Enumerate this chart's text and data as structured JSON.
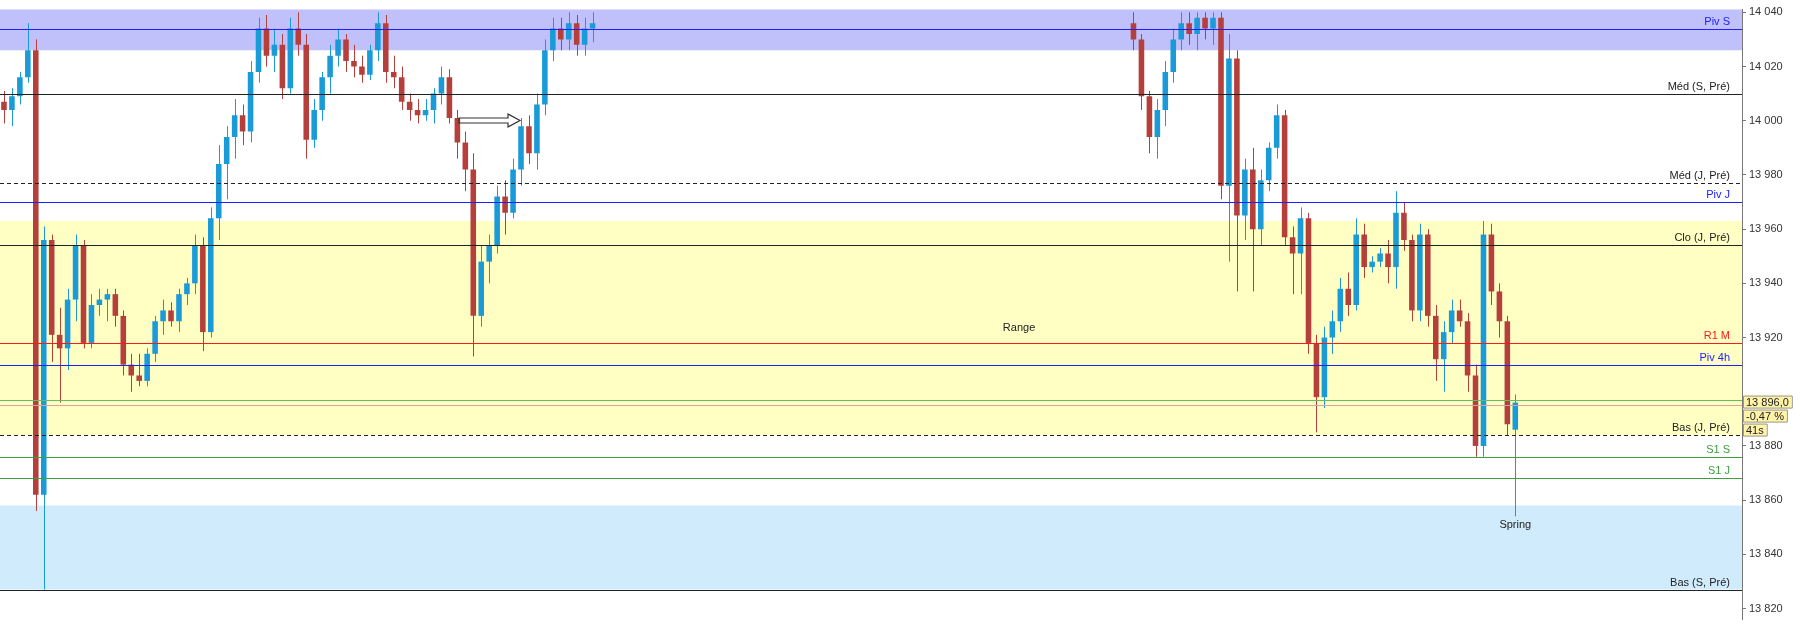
{
  "chart_data": {
    "type": "candlestick",
    "categories": [
      null,
      null,
      null,
      null,
      null,
      null,
      null,
      null,
      null,
      null,
      null,
      null,
      null,
      null,
      null,
      null,
      null,
      null,
      null,
      null,
      null,
      null,
      null,
      null,
      null,
      null,
      null,
      null,
      null,
      null,
      null,
      null,
      null,
      null,
      null,
      null,
      null,
      null,
      null,
      null,
      null,
      null,
      null,
      null,
      null,
      null,
      null,
      null,
      null,
      null,
      null,
      null,
      null,
      null,
      null,
      null,
      null,
      null,
      null,
      null,
      null,
      null,
      null,
      null,
      null,
      null,
      null,
      null,
      null,
      null,
      null,
      null,
      null,
      null,
      null,
      null,
      null,
      null,
      null,
      null,
      null,
      null,
      null,
      null,
      null,
      null,
      null,
      null,
      null,
      null,
      null,
      null,
      null,
      null,
      null,
      null,
      null,
      null,
      null,
      null,
      null,
      null,
      null,
      null,
      null,
      null,
      null,
      null,
      null,
      null,
      null,
      null,
      null,
      null,
      null,
      null,
      null,
      null,
      null,
      null,
      null,
      null,
      null,
      null,
      null,
      null,
      null,
      null,
      null,
      null,
      null,
      null,
      null,
      null,
      null,
      null,
      null,
      null,
      null,
      null,
      null,
      null,
      null,
      null,
      null,
      null,
      null,
      null,
      null,
      null,
      null,
      null,
      null,
      null,
      null,
      null,
      null,
      null,
      null,
      null,
      null,
      null,
      null,
      null,
      null,
      null,
      null,
      null,
      null,
      null,
      null,
      null,
      null,
      null,
      null,
      null,
      null,
      null,
      null,
      null,
      null,
      null,
      null,
      null,
      null,
      null,
      null,
      null,
      null,
      null,
      null,
      null,
      null,
      null,
      null,
      null,
      null,
      null,
      null,
      null,
      null,
      null,
      null,
      null,
      null,
      null,
      null,
      null,
      null,
      null,
      null,
      null,
      null,
      null,
      null,
      null,
      null,
      null,
      null
    ],
    "ohlc": [
      [
        14007,
        14011,
        13999,
        14004
      ],
      [
        14004,
        14012,
        13998,
        14009
      ],
      [
        14009,
        14018,
        14006,
        14016
      ],
      [
        14016,
        14036,
        14014,
        14026
      ],
      [
        14026,
        14030,
        13856,
        13862
      ],
      [
        13862,
        13961,
        13827,
        13956
      ],
      [
        13956,
        13958,
        13911,
        13921
      ],
      [
        13921,
        13931,
        13896,
        13916
      ],
      [
        13916,
        13938,
        13908,
        13934
      ],
      [
        13934,
        13958,
        13926,
        13954
      ],
      [
        13954,
        13956,
        13916,
        13918
      ],
      [
        13918,
        13936,
        13916,
        13932
      ],
      [
        13932,
        13938,
        13928,
        13934
      ],
      [
        13934,
        13938,
        13926,
        13936
      ],
      [
        13936,
        13938,
        13924,
        13928
      ],
      [
        13928,
        13930,
        13906,
        13910
      ],
      [
        13910,
        13914,
        13900,
        13906
      ],
      [
        13906,
        13914,
        13902,
        13904
      ],
      [
        13904,
        13916,
        13902,
        13914
      ],
      [
        13914,
        13928,
        13911,
        13926
      ],
      [
        13926,
        13934,
        13921,
        13930
      ],
      [
        13930,
        13933,
        13924,
        13926
      ],
      [
        13926,
        13938,
        13922,
        13936
      ],
      [
        13936,
        13942,
        13932,
        13940
      ],
      [
        13940,
        13958,
        13936,
        13954
      ],
      [
        13954,
        13957,
        13915,
        13922
      ],
      [
        13922,
        13968,
        13920,
        13964
      ],
      [
        13964,
        13991,
        13956,
        13984
      ],
      [
        13984,
        13998,
        13971,
        13994
      ],
      [
        13994,
        14008,
        13986,
        14002
      ],
      [
        14002,
        14006,
        13991,
        13996
      ],
      [
        13996,
        14022,
        13992,
        14018
      ],
      [
        14018,
        14038,
        14014,
        14034
      ],
      [
        14034,
        14039,
        14020,
        14024
      ],
      [
        14024,
        14034,
        14018,
        14028
      ],
      [
        14028,
        14032,
        14008,
        14012
      ],
      [
        14012,
        14038,
        14010,
        14034
      ],
      [
        14034,
        14040,
        14024,
        14028
      ],
      [
        14028,
        14032,
        13986,
        13993
      ],
      [
        13993,
        14008,
        13990,
        14004
      ],
      [
        14004,
        14018,
        14000,
        14016
      ],
      [
        14016,
        14028,
        14010,
        14024
      ],
      [
        14024,
        14034,
        14020,
        14030
      ],
      [
        14030,
        14032,
        14018,
        14022
      ],
      [
        14022,
        14028,
        14016,
        14020
      ],
      [
        14020,
        14024,
        14014,
        14017
      ],
      [
        14017,
        14028,
        14015,
        14026
      ],
      [
        14026,
        14040,
        14022,
        14036
      ],
      [
        14036,
        14039,
        14014,
        14018
      ],
      [
        14018,
        14024,
        14012,
        14016
      ],
      [
        14016,
        14020,
        14004,
        14007
      ],
      [
        14007,
        14010,
        14000,
        14004
      ],
      [
        14004,
        14008,
        13999,
        14002
      ],
      [
        14002,
        14008,
        14000,
        14004
      ],
      [
        14004,
        14012,
        13999,
        14010
      ],
      [
        14010,
        14020,
        14006,
        14016
      ],
      [
        14016,
        14019,
        13999,
        14001
      ],
      [
        14001,
        14004,
        13986,
        13992
      ],
      [
        13992,
        13996,
        13974,
        13982
      ],
      [
        13982,
        13988,
        13913,
        13928
      ],
      [
        13928,
        13954,
        13924,
        13948
      ],
      [
        13948,
        13958,
        13940,
        13954
      ],
      [
        13954,
        13976,
        13951,
        13972
      ],
      [
        13972,
        13978,
        13958,
        13966
      ],
      [
        13966,
        13986,
        13964,
        13982
      ],
      [
        13982,
        14001,
        13976,
        13998
      ],
      [
        13998,
        14002,
        13984,
        13988
      ],
      [
        13988,
        14010,
        13982,
        14006
      ],
      [
        14006,
        14030,
        14002,
        14026
      ],
      [
        14026,
        14038,
        14022,
        14034
      ],
      [
        14034,
        14038,
        14026,
        14030
      ],
      [
        14030,
        14040,
        14026,
        14036
      ],
      [
        14036,
        14039,
        14024,
        14028
      ],
      [
        14028,
        14038,
        14024,
        14034
      ],
      [
        14034,
        14040,
        14029,
        14036
      ],
      null,
      null,
      null,
      null,
      null,
      null,
      null,
      null,
      null,
      null,
      null,
      null,
      null,
      null,
      null,
      null,
      null,
      null,
      null,
      null,
      null,
      null,
      null,
      null,
      null,
      null,
      null,
      null,
      null,
      null,
      null,
      null,
      null,
      null,
      null,
      null,
      null,
      null,
      null,
      null,
      null,
      null,
      null,
      null,
      null,
      null,
      null,
      null,
      null,
      null,
      null,
      null,
      null,
      null,
      null,
      null,
      null,
      null,
      null,
      null,
      null,
      null,
      null,
      null,
      null,
      null,
      null,
      [
        14036,
        14040,
        14026,
        14030
      ],
      [
        14030,
        14032,
        14004,
        14009
      ],
      [
        14009,
        14011,
        13988,
        13994
      ],
      [
        13994,
        14008,
        13986,
        14004
      ],
      [
        14004,
        14022,
        13998,
        14018
      ],
      [
        14018,
        14034,
        14014,
        14030
      ],
      [
        14030,
        14040,
        14026,
        14036
      ],
      [
        14036,
        14040,
        14028,
        14032
      ],
      [
        14032,
        14040,
        14026,
        14038
      ],
      [
        14038,
        14040,
        14030,
        14034
      ],
      [
        14034,
        14040,
        14028,
        14038
      ],
      [
        14038,
        14040,
        13971,
        13976
      ],
      [
        13976,
        14032,
        13948,
        14023
      ],
      [
        14023,
        14026,
        13937,
        13965
      ],
      [
        13965,
        13986,
        13956,
        13982
      ],
      [
        13982,
        13990,
        13937,
        13960
      ],
      [
        13960,
        13982,
        13954,
        13978
      ],
      [
        13978,
        13992,
        13974,
        13990
      ],
      [
        13990,
        14006,
        13986,
        14002
      ],
      [
        14002,
        14004,
        13954,
        13957
      ],
      [
        13957,
        13961,
        13936,
        13951
      ],
      [
        13951,
        13968,
        13936,
        13964
      ],
      [
        13964,
        13966,
        13914,
        13918
      ],
      [
        13918,
        13921,
        13885,
        13898
      ],
      [
        13898,
        13924,
        13894,
        13920
      ],
      [
        13920,
        13930,
        13914,
        13926
      ],
      [
        13926,
        13942,
        13922,
        13938
      ],
      [
        13938,
        13944,
        13928,
        13932
      ],
      [
        13932,
        13964,
        13930,
        13958
      ],
      [
        13958,
        13962,
        13942,
        13946
      ],
      [
        13946,
        13950,
        13944,
        13948
      ],
      [
        13948,
        13953,
        13946,
        13951
      ],
      [
        13951,
        13956,
        13940,
        13946
      ],
      [
        13946,
        13974,
        13938,
        13966
      ],
      [
        13966,
        13970,
        13952,
        13956
      ],
      [
        13956,
        13958,
        13926,
        13930
      ],
      [
        13930,
        13962,
        13926,
        13958
      ],
      [
        13958,
        13960,
        13924,
        13928
      ],
      [
        13928,
        13932,
        13904,
        13912
      ],
      [
        13912,
        13926,
        13900,
        13922
      ],
      [
        13922,
        13934,
        13918,
        13930
      ],
      [
        13930,
        13934,
        13924,
        13926
      ],
      [
        13926,
        13929,
        13900,
        13906
      ],
      [
        13906,
        13910,
        13876,
        13880
      ],
      [
        13880,
        13963,
        13876,
        13958
      ],
      [
        13958,
        13962,
        13932,
        13937
      ],
      [
        13937,
        13940,
        13920,
        13926
      ],
      [
        13926,
        13928,
        13884,
        13888
      ],
      [
        13886,
        13899,
        13854,
        13896
      ],
      null,
      null,
      null,
      null,
      null,
      null,
      null,
      null,
      null,
      null,
      null,
      null,
      null,
      null,
      null,
      null,
      null,
      null,
      null,
      null,
      null,
      null,
      null,
      null,
      null,
      null,
      null,
      null
    ],
    "colors": [
      "#b5403b",
      "#1a9bd7",
      "#1a9bd7",
      "#1a9bd7",
      "#b5403b",
      "#1a9bd7",
      "#b5403b",
      "#b5403b",
      "#1a9bd7",
      "#1a9bd7",
      "#b5403b",
      "#1a9bd7",
      "#1a9bd7",
      "#1a9bd7",
      "#b5403b",
      "#b5403b",
      "#b5403b",
      "#b5403b",
      "#1a9bd7",
      "#1a9bd7",
      "#1a9bd7",
      "#b5403b",
      "#1a9bd7",
      "#1a9bd7",
      "#1a9bd7",
      "#b5403b",
      "#1a9bd7",
      "#1a9bd7",
      "#1a9bd7",
      "#1a9bd7",
      "#b5403b",
      "#1a9bd7",
      "#1a9bd7",
      "#b5403b",
      "#1a9bd7",
      "#b5403b",
      "#1a9bd7",
      "#b5403b",
      "#b5403b",
      "#1a9bd7",
      "#1a9bd7",
      "#1a9bd7",
      "#1a9bd7",
      "#b5403b",
      "#b5403b",
      "#b5403b",
      "#1a9bd7",
      "#1a9bd7",
      "#b5403b",
      "#b5403b",
      "#b5403b",
      "#b5403b",
      "#b5403b",
      "#1a9bd7",
      "#1a9bd7",
      "#1a9bd7",
      "#b5403b",
      "#b5403b",
      "#b5403b",
      "#b5403b",
      "#1a9bd7",
      "#1a9bd7",
      "#1a9bd7",
      "#b5403b",
      "#1a9bd7",
      "#1a9bd7",
      "#b5403b",
      "#1a9bd7",
      "#1a9bd7",
      "#1a9bd7",
      "#b5403b",
      "#1a9bd7",
      "#b5403b",
      "#1a9bd7",
      "#1a9bd7",
      null,
      null,
      null,
      null,
      null,
      null,
      null,
      null,
      null,
      null,
      null,
      null,
      null,
      null,
      null,
      null,
      null,
      null,
      null,
      null,
      null,
      null,
      null,
      null,
      null,
      null,
      null,
      null,
      null,
      null,
      null,
      null,
      null,
      null,
      null,
      null,
      null,
      null,
      null,
      null,
      null,
      null,
      null,
      null,
      null,
      null,
      null,
      null,
      null,
      null,
      null,
      null,
      null,
      null,
      null,
      null,
      null,
      null,
      null,
      null,
      null,
      null,
      null,
      null,
      null,
      null,
      null,
      "#b5403b",
      "#b5403b",
      "#b5403b",
      "#1a9bd7",
      "#1a9bd7",
      "#1a9bd7",
      "#1a9bd7",
      "#b5403b",
      "#1a9bd7",
      "#b5403b",
      "#1a9bd7",
      "#b5403b",
      "#1a9bd7",
      "#b5403b",
      "#1a9bd7",
      "#b5403b",
      "#1a9bd7",
      "#1a9bd7",
      "#1a9bd7",
      "#b5403b",
      "#b5403b",
      "#1a9bd7",
      "#b5403b",
      "#b5403b",
      "#1a9bd7",
      "#1a9bd7",
      "#1a9bd7",
      "#b5403b",
      "#1a9bd7",
      "#b5403b",
      "#1a9bd7",
      "#1a9bd7",
      "#b5403b",
      "#1a9bd7",
      "#b5403b",
      "#b5403b",
      "#1a9bd7",
      "#b5403b",
      "#b5403b",
      "#1a9bd7",
      "#1a9bd7",
      "#b5403b",
      "#b5403b",
      "#b5403b",
      "#1a9bd7",
      "#b5403b",
      "#b5403b",
      "#b5403b",
      "#1a9bd7",
      null,
      null,
      null,
      null,
      null,
      null,
      null,
      null,
      null,
      null,
      null,
      null,
      null,
      null,
      null,
      null,
      null,
      null,
      null,
      null,
      null,
      null,
      null,
      null,
      null,
      null,
      null,
      null
    ],
    "ylim": [
      13816,
      14041
    ],
    "yticks": [
      {
        "value": 13820,
        "label": "13 820"
      },
      {
        "value": 13840,
        "label": "13 840"
      },
      {
        "value": 13860,
        "label": "13 860"
      },
      {
        "value": 13880,
        "label": "13 880"
      },
      {
        "value": 13920,
        "label": "13 920"
      },
      {
        "value": 13940,
        "label": "13 940"
      },
      {
        "value": 13960,
        "label": "13 960"
      },
      {
        "value": 13980,
        "label": "13 980"
      },
      {
        "value": 14000,
        "label": "14 000"
      },
      {
        "value": 14020,
        "label": "14 020"
      },
      {
        "value": 14040,
        "label": "14 040"
      }
    ],
    "bands": [
      {
        "axis": "y",
        "from": 14026,
        "to": 14041,
        "color": "#c0c0fb"
      },
      {
        "axis": "y",
        "from": 13884,
        "to": 13963,
        "color": "#ffffc4",
        "label": "Range"
      },
      {
        "axis": "y",
        "from": 13827,
        "to": 13858,
        "color": "#d0ecfc"
      }
    ],
    "ref_lines": [
      {
        "axis": "y",
        "value": 14034,
        "label": "Piv S",
        "color": "#2020ff"
      },
      {
        "axis": "y",
        "value": 14010,
        "label": "Méd (S, Pré)",
        "color": "#222222"
      },
      {
        "axis": "y",
        "value": 13977,
        "label": "Méd (J, Pré)",
        "color": "#222222",
        "line_style": "dashed"
      },
      {
        "axis": "y",
        "value": 13970,
        "label": "Piv J",
        "color": "#2020ff"
      },
      {
        "axis": "y",
        "value": 13954,
        "label": "Clo (J, Pré)",
        "color": "#222222"
      },
      {
        "axis": "y",
        "value": 13918,
        "label": "R1 M",
        "color": "#ff1a1a"
      },
      {
        "axis": "y",
        "value": 13910,
        "label": "Piv 4h",
        "color": "#2020ff"
      },
      {
        "axis": "y",
        "value": 13897,
        "color": "#60c060"
      },
      {
        "axis": "y",
        "value": 13895,
        "color": "#e0a0a0"
      },
      {
        "axis": "y",
        "value": 13884,
        "label": "Bas (J, Pré)",
        "color": "#222222",
        "line_style": "dashed"
      },
      {
        "axis": "y",
        "value": 13876,
        "label": "S1 S",
        "color": "#3ca03c"
      },
      {
        "axis": "y",
        "value": 13868,
        "label": "S1 J",
        "color": "#3ca03c"
      },
      {
        "axis": "y",
        "value": 13827,
        "label": "Bas (S, Pré)",
        "color": "#222222"
      }
    ],
    "annotations": [
      {
        "text": "Spring",
        "y": 13854
      },
      "13 896,0",
      "-0,47 %",
      "41s"
    ]
  }
}
